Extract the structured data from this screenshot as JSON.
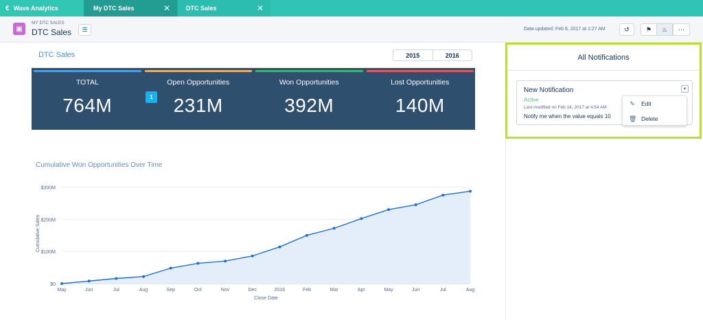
{
  "tabs": {
    "app": "Wave Analytics",
    "active": "My DTC Sales",
    "second": "DTC Sales"
  },
  "header": {
    "eyebrow": "MY DTC SALES",
    "title": "DTC Sales",
    "updated": "Data updated: Feb 8, 2017 at 1:27 AM"
  },
  "main": {
    "title": "DTC Sales",
    "years": [
      "2015",
      "2016"
    ]
  },
  "kpis": [
    {
      "label": "TOTAL",
      "value": "764M",
      "color": "#4b9fe1"
    },
    {
      "label": "Open Opportunities",
      "value": "231M",
      "color": "#e6ad6b"
    },
    {
      "label": "Won Opportunities",
      "value": "392M",
      "color": "#3cb371"
    },
    {
      "label": "Lost Opportunities",
      "value": "140M",
      "color": "#e15959"
    }
  ],
  "kpi_badge": "1",
  "chart_title": "Cumulative Won Opportunities Over Time",
  "notifications": {
    "header": "All Notifications",
    "card": {
      "title": "New Notification",
      "status": "Active",
      "modified": "Last modified on Feb 14, 2017 at 4:54 AM",
      "description": "Notify me when the value equals 10"
    },
    "menu": {
      "edit": "Edit",
      "delete": "Delete"
    }
  },
  "colors": {
    "tabbar": "#2ec4b6",
    "kpi_panel": "#2f4f6e",
    "highlight": "#b6e22e",
    "line": "#1b6fd6"
  },
  "chart_data": {
    "type": "area",
    "title": "Cumulative Won Opportunities Over Time",
    "xlabel": "Close Date",
    "ylabel": "Cumulative Sales",
    "x": [
      "May",
      "Jun",
      "Jul",
      "Aug",
      "Sep",
      "Oct",
      "Nov",
      "Dec",
      "2016",
      "Feb",
      "Mar",
      "Apr",
      "May",
      "Jun",
      "Jul",
      "Aug"
    ],
    "y": [
      0,
      8,
      16,
      22,
      48,
      63,
      70,
      86,
      114,
      150,
      172,
      202,
      230,
      245,
      275,
      287
    ],
    "yticks": [
      {
        "value": 0,
        "label": "$0"
      },
      {
        "value": 100,
        "label": "$100M"
      },
      {
        "value": 200,
        "label": "$200M"
      },
      {
        "value": 300,
        "label": "$300M"
      }
    ],
    "ylim": [
      0,
      320
    ],
    "grid": true
  }
}
